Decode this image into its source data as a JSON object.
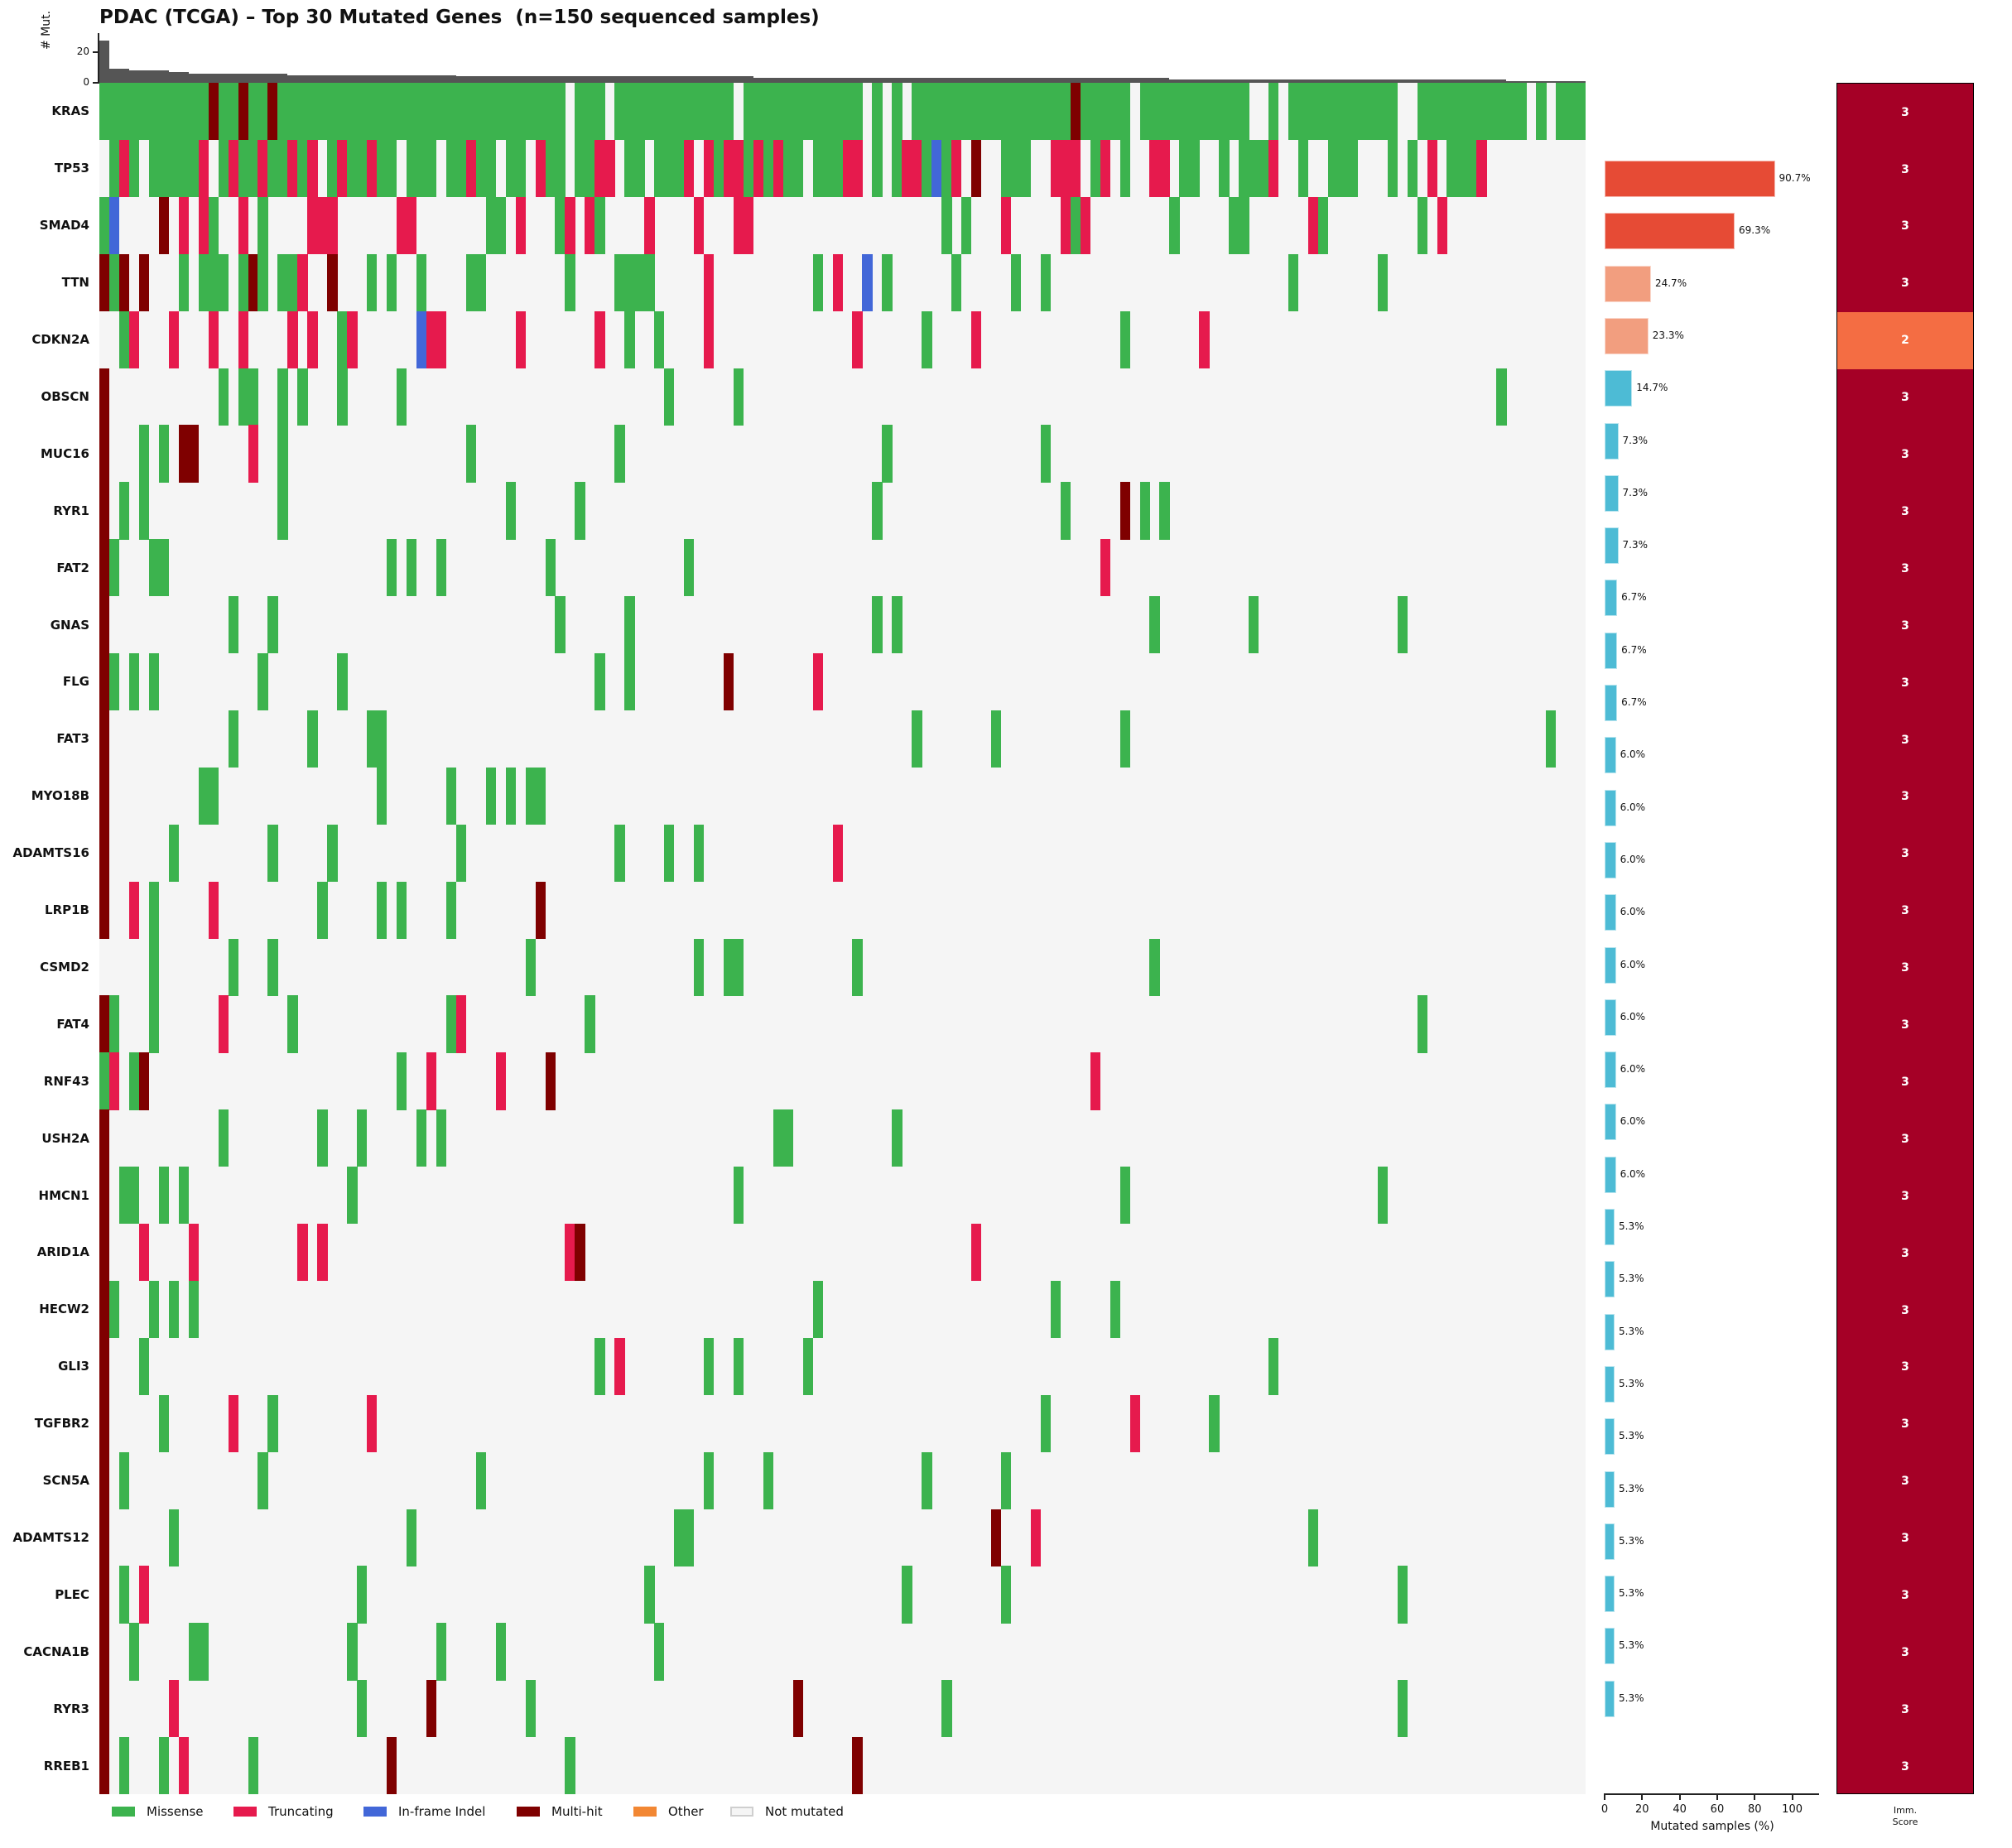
{
  "title": "PDAC (TCGA) – Top 30 Mutated Genes  (n=150 sequenced samples)",
  "colors": {
    "M": "#3cb34e",
    "T": "#e61a4d",
    "I": "#4267d8",
    "H": "#7f0000",
    "O": "#f28733",
    "none": "#f5f5f5",
    "tmb": "#555555",
    "freq_high": "#e64b35",
    "freq_mid": "#f29e7f",
    "freq_low": "#4dbbd5",
    "imm_3": "#a50026",
    "imm_2": "#f46d43"
  },
  "legend": [
    {
      "code": "M",
      "label": "Missense"
    },
    {
      "code": "T",
      "label": "Truncating"
    },
    {
      "code": "I",
      "label": "In-frame Indel"
    },
    {
      "code": "H",
      "label": "Multi-hit"
    },
    {
      "code": "O",
      "label": "Other"
    },
    {
      "code": "none",
      "label": "Not mutated"
    }
  ],
  "chart_data": [
    {
      "type": "heatmap",
      "title": "PDAC (TCGA) – Top 30 Mutated Genes  (n=150 sequenced samples)",
      "n_samples": 150,
      "encoding": "Each gene row is either a 150-char string (M=Missense, T=Truncating, I=In-frame Indel, H=Multi-hit, .=Not mutated) or sparse tokens 'col[-col]CODE' (0-based sample columns)",
      "genes": [
        {
          "gene": "KRAS",
          "row": "MMMMMMMMMMMHMMHMMHMMMMMMMMMMMMMMMMMMMMMMMMMMMMM.MMM.MMMMMMMMMMMM.MMMMMMMMMMMM.M.M.MMMMMMMMMMMMMMMMHMMMMM.MMMMMMMMMMM..M.MMMMMMMMMMM..MMMMMMMMMMM.M.MMMMMM"
        },
        {
          "gene": "TP53",
          "row": ".MTM.MMMMMT.MTMMTMMTMT.MTMMTMM.MMM.MMTMM.MM.TMM.MMTT.MM.MMMT.TMTTMTMTMM.MMMTT.M.MTTMIMT.H..MMM..TTT.MT.M..TT.MM..M.MMMT..M..MMM...M.M.T.MMMT.........."
        },
        {
          "gene": "SMAD4",
          "sparse": "0M 1I 6H 8T 10T 11M 14T 16M 21-23T 30-31T 39-40M 42T 46M 47T 49T 50M 55T 60T 64-65T 85M 87M 91T 97T 98M 99T 108M 114-115M 122T 123M 133M 135T"
        },
        {
          "gene": "TTN",
          "sparse": "0H 1M 2H 4H 8M 10-12M 14M 15H 16M 18-19M 20T 23H 27M 29M 32M 37-38M 47M 52-55M 61T 72M 74T 77I 79M 86M 92M 95M 120M 129M"
        },
        {
          "gene": "CDKN2A",
          "sparse": "2M 3T 7T 11T 14T 19T 21T 24M 25T 32I 33-34T 42T 50T 53M 56M 61T 76T 83M 88T 103M 111T"
        },
        {
          "gene": "OBSCN",
          "sparse": "0H 12M 14-15M 18M 20M 24M 30M 57M 64M 141M"
        },
        {
          "gene": "MUC16",
          "sparse": "0H 4M 6M 8-9H 15T 18M 37M 52M 79M 95M"
        },
        {
          "gene": "RYR1",
          "sparse": "0H 2M 4M 18M 41M 48M 78M 97M 103H 105M 107M"
        },
        {
          "gene": "FAT2",
          "sparse": "0H 1M 5-6M 29M 31M 34M 45M 59M 101T"
        },
        {
          "gene": "GNAS",
          "sparse": "0H 13M 17M 46M 53M 78M 80M 106M 116M 131M"
        },
        {
          "gene": "FLG",
          "sparse": "0H 1M 3M 5M 16M 24M 50M 53M 63H 72T"
        },
        {
          "gene": "FAT3",
          "sparse": "0H 13M 21M 27-28M 82M 90M 103M 146M"
        },
        {
          "gene": "MYO18B",
          "sparse": "0H 10-11M 28M 35M 39M 41M 43-44M"
        },
        {
          "gene": "ADAMTS16",
          "sparse": "0H 7M 17M 23M 36M 52M 57M 60M 74T"
        },
        {
          "gene": "LRP1B",
          "sparse": "0H 3T 5M 11T 22M 28M 30M 35M 44H"
        },
        {
          "gene": "CSMD2",
          "sparse": "5M 13M 17M 43M 60M 63-64M 76M 106M"
        },
        {
          "gene": "FAT4",
          "sparse": "0H 1M 5M 12T 19M 35M 36T 49M 133M"
        },
        {
          "gene": "RNF43",
          "sparse": "0M 1T 3M 4H 30M 33T 40T 45H 100T"
        },
        {
          "gene": "USH2A",
          "sparse": "0H 12M 22M 26M 32M 34M 68-69M 80M"
        },
        {
          "gene": "HMCN1",
          "sparse": "0H 2-3M 6M 8M 25M 64M 103M 129M"
        },
        {
          "gene": "ARID1A",
          "sparse": "0H 4T 9T 20T 22T 47T 48H 88T"
        },
        {
          "gene": "HECW2",
          "sparse": "0H 1M 5M 7M 9M 72M 96M 102M"
        },
        {
          "gene": "GLI3",
          "sparse": "0H 4M 50M 52T 61M 64M 71M 118M"
        },
        {
          "gene": "TGFBR2",
          "sparse": "0H 6M 13T 17M 27T 95M 104T 112M"
        },
        {
          "gene": "SCN5A",
          "sparse": "0H 2M 16M 38M 61M 67M 83M 91M"
        },
        {
          "gene": "ADAMTS12",
          "sparse": "0H 7M 31M 58-59M 90H 94T 122M"
        },
        {
          "gene": "PLEC",
          "sparse": "0H 2M 4T 26M 55M 81M 91M 131M"
        },
        {
          "gene": "CACNA1B",
          "sparse": "0H 3M 9-10M 25M 34M 40M 56M"
        },
        {
          "gene": "RYR3",
          "sparse": "0H 7T 26M 33H 43M 70H 85M 131M"
        },
        {
          "gene": "RREB1",
          "sparse": "0H 2M 6M 8T 15M 29H 47M 76H"
        }
      ]
    },
    {
      "type": "bar",
      "title": "Mutations per sample",
      "ylabel": "# Mut.",
      "yticks": [
        0,
        20
      ],
      "ylim": [
        0,
        30
      ],
      "segments": [
        {
          "from": 0,
          "to": 0,
          "value": 27
        },
        {
          "from": 1,
          "to": 2,
          "value": 9
        },
        {
          "from": 3,
          "to": 6,
          "value": 8
        },
        {
          "from": 7,
          "to": 8,
          "value": 7
        },
        {
          "from": 9,
          "to": 18,
          "value": 6
        },
        {
          "from": 19,
          "to": 35,
          "value": 5
        },
        {
          "from": 36,
          "to": 65,
          "value": 4
        },
        {
          "from": 66,
          "to": 107,
          "value": 3
        },
        {
          "from": 108,
          "to": 141,
          "value": 2
        },
        {
          "from": 142,
          "to": 149,
          "value": 1
        }
      ]
    },
    {
      "type": "bar",
      "orientation": "horizontal",
      "xlabel": "Mutated samples (%)",
      "xticks": [
        0,
        20,
        40,
        60,
        80,
        100
      ],
      "xlim": [
        0,
        115
      ],
      "values": [
        90.7,
        69.3,
        24.7,
        23.3,
        14.7,
        7.3,
        7.3,
        7.3,
        6.7,
        6.7,
        6.7,
        6.0,
        6.0,
        6.0,
        6.0,
        6.0,
        6.0,
        6.0,
        6.0,
        6.0,
        5.3,
        5.3,
        5.3,
        5.3,
        5.3,
        5.3,
        5.3,
        5.3,
        5.3,
        5.3
      ],
      "labels": [
        "90.7%",
        "69.3%",
        "24.7%",
        "23.3%",
        "14.7%",
        "7.3%",
        "7.3%",
        "7.3%",
        "6.7%",
        "6.7%",
        "6.7%",
        "6.0%",
        "6.0%",
        "6.0%",
        "6.0%",
        "6.0%",
        "6.0%",
        "6.0%",
        "6.0%",
        "6.0%",
        "5.3%",
        "5.3%",
        "5.3%",
        "5.3%",
        "5.3%",
        "5.3%",
        "5.3%",
        "5.3%",
        "5.3%",
        "5.3%"
      ]
    },
    {
      "type": "heatmap",
      "title": "Imm. Score",
      "label_line1": "Imm.",
      "label_line2": "Score",
      "values": [
        3,
        3,
        3,
        3,
        2,
        3,
        3,
        3,
        3,
        3,
        3,
        3,
        3,
        3,
        3,
        3,
        3,
        3,
        3,
        3,
        3,
        3,
        3,
        3,
        3,
        3,
        3,
        3,
        3,
        3
      ]
    }
  ]
}
